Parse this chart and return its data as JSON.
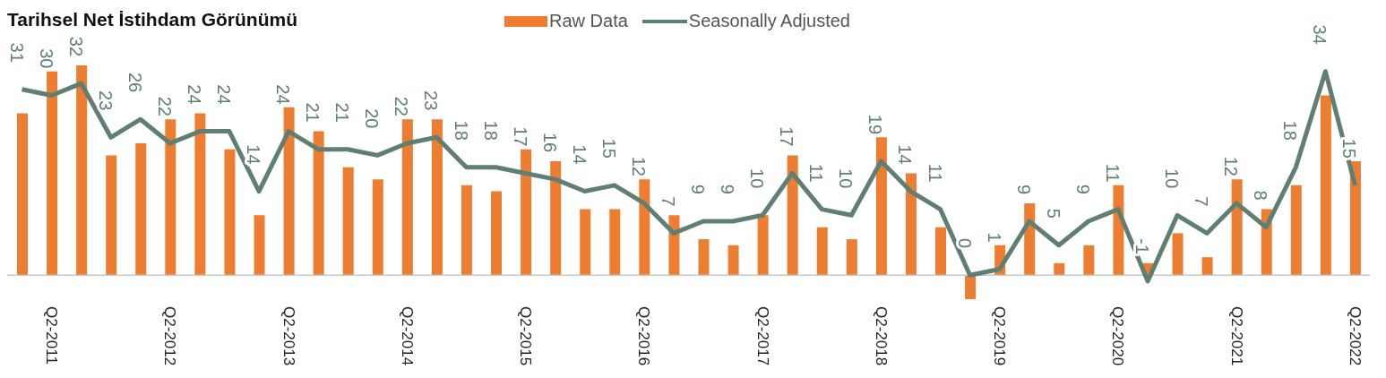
{
  "chart_data": {
    "type": "bar",
    "title": "Tarihsel Net İstihdam Görünümü",
    "legend": "top",
    "categories": [
      null,
      "Q2-2011",
      null,
      null,
      null,
      "Q2-2012",
      null,
      null,
      null,
      "Q2-2013",
      null,
      null,
      null,
      "Q2-2014",
      null,
      null,
      null,
      "Q2-2015",
      null,
      null,
      null,
      "Q2-2016",
      null,
      null,
      null,
      "Q2-2017",
      null,
      null,
      null,
      "Q2-2018",
      null,
      null,
      null,
      "Q2-2019",
      null,
      null,
      null,
      "Q2-2020",
      null,
      null,
      null,
      "Q2-2021",
      null,
      null,
      null,
      "Q2-2022"
    ],
    "series": [
      {
        "name": "Raw Data",
        "color": "#ed7d31",
        "values": [
          27,
          34,
          35,
          20,
          22,
          26,
          27,
          21,
          10,
          28,
          24,
          18,
          16,
          26,
          26,
          15,
          14,
          21,
          19,
          11,
          11,
          16,
          10,
          6,
          5,
          10,
          20,
          8,
          6,
          23,
          17,
          8,
          -4,
          5,
          12,
          2,
          5,
          15,
          2,
          7,
          3,
          16,
          11,
          15,
          30,
          19
        ]
      },
      {
        "name": "Seasonally Adjusted",
        "type": "line",
        "color": "#5f7f72",
        "data_labels": true,
        "values": [
          31,
          30,
          32,
          23,
          26,
          22,
          24,
          24,
          14,
          24,
          21,
          21,
          20,
          22,
          23,
          18,
          18,
          17,
          16,
          14,
          15,
          12,
          7,
          9,
          9,
          10,
          17,
          11,
          10,
          19,
          14,
          11,
          0,
          1,
          9,
          5,
          9,
          11,
          -1,
          10,
          7,
          12,
          8,
          18,
          34,
          15
        ]
      }
    ]
  }
}
